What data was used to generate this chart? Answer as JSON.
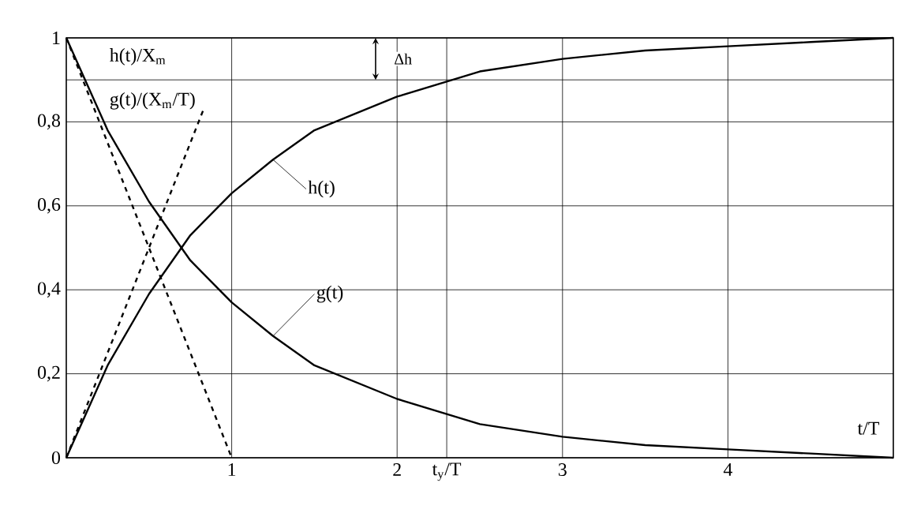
{
  "chart_data": {
    "type": "line",
    "xlabel": "t/T",
    "x": [
      0,
      0.25,
      0.5,
      0.75,
      1,
      1.25,
      1.5,
      2,
      2.5,
      3,
      3.5,
      4,
      4.5,
      5
    ],
    "series": [
      {
        "name": "h(t)",
        "color": "#000000",
        "values": [
          0,
          0.22,
          0.39,
          0.53,
          0.63,
          0.71,
          0.78,
          0.86,
          0.92,
          0.95,
          0.97,
          0.98,
          0.99,
          1.0
        ]
      },
      {
        "name": "g(t)",
        "color": "#000000",
        "values": [
          1,
          0.78,
          0.61,
          0.47,
          0.37,
          0.29,
          0.22,
          0.14,
          0.08,
          0.05,
          0.03,
          0.02,
          0.01,
          0.0
        ]
      },
      {
        "color": "#000000",
        "line_style": "dashed",
        "x": [
          0,
          0.83
        ],
        "values": [
          0,
          0.83
        ]
      },
      {
        "color": "#000000",
        "line_style": "dashed",
        "x": [
          0,
          1
        ],
        "values": [
          1,
          0
        ]
      }
    ],
    "xlim": [
      0,
      5
    ],
    "ylim": [
      0,
      1
    ],
    "xticks": [
      1,
      2,
      3,
      4
    ],
    "yticks": [
      0,
      {
        "value": 0.2,
        "label": "0,2"
      },
      {
        "value": 0.4,
        "label": "0,4"
      },
      {
        "value": 0.6,
        "label": "0,6"
      },
      {
        "value": 0.8,
        "label": "0,8"
      },
      1
    ],
    "ref_lines": [
      {
        "axis": "y",
        "value": 0.9,
        "color": "#000000"
      },
      {
        "axis": "x",
        "value": 2.3,
        "color": "#000000",
        "label": "t$_{y}$/T"
      }
    ],
    "annotations": [
      "h(t)/X$_{m}$",
      "g(t)/(X$_{m}$/T)",
      "Δh"
    ],
    "grid": true,
    "marker": "none",
    "line_style": "solid"
  }
}
